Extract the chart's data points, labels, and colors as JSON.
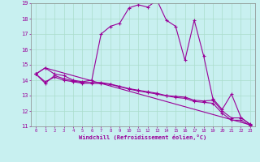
{
  "xlabel": "Windchill (Refroidissement éolien,°C)",
  "bg_color": "#c8f0f0",
  "line_color": "#990099",
  "grid_color": "#aaddcc",
  "xlim": [
    -0.5,
    23.5
  ],
  "ylim": [
    11,
    19
  ],
  "xticks": [
    0,
    1,
    2,
    3,
    4,
    5,
    6,
    7,
    8,
    9,
    10,
    11,
    12,
    13,
    14,
    15,
    16,
    17,
    18,
    19,
    20,
    21,
    22,
    23
  ],
  "yticks": [
    11,
    12,
    13,
    14,
    15,
    16,
    17,
    18,
    19
  ],
  "series1_x": [
    0,
    1,
    2,
    3,
    4,
    5,
    6,
    7,
    8,
    9,
    10,
    11,
    12,
    13,
    14,
    15,
    16,
    17,
    18,
    19,
    20,
    21,
    22,
    23
  ],
  "series1_y": [
    14.4,
    14.8,
    14.4,
    14.3,
    14.0,
    13.9,
    14.0,
    17.0,
    17.5,
    17.7,
    18.7,
    18.9,
    18.75,
    19.2,
    17.9,
    17.5,
    15.3,
    17.9,
    15.6,
    12.8,
    12.1,
    13.1,
    11.6,
    11.1
  ],
  "series2_x": [
    0,
    1,
    2,
    3,
    4,
    5,
    6,
    7,
    8,
    9,
    10,
    11,
    12,
    13,
    14,
    15,
    16,
    17,
    18,
    19,
    20,
    21,
    22,
    23
  ],
  "series2_y": [
    14.4,
    13.8,
    14.3,
    14.1,
    13.95,
    13.85,
    13.85,
    13.85,
    13.75,
    13.6,
    13.45,
    13.35,
    13.25,
    13.15,
    13.0,
    12.95,
    12.9,
    12.7,
    12.65,
    12.7,
    12.0,
    11.55,
    11.55,
    11.15
  ],
  "series3_x": [
    0,
    1,
    2,
    3,
    4,
    5,
    6,
    7,
    8,
    9,
    10,
    11,
    12,
    13,
    14,
    15,
    16,
    17,
    18,
    19,
    20,
    21,
    22,
    23
  ],
  "series3_y": [
    14.4,
    13.9,
    14.2,
    14.0,
    13.9,
    13.8,
    13.8,
    13.78,
    13.72,
    13.58,
    13.42,
    13.3,
    13.2,
    13.1,
    12.98,
    12.88,
    12.82,
    12.62,
    12.56,
    12.5,
    11.85,
    11.4,
    11.4,
    11.05
  ],
  "series4_x": [
    0,
    1,
    23
  ],
  "series4_y": [
    14.4,
    14.8,
    11.1
  ]
}
